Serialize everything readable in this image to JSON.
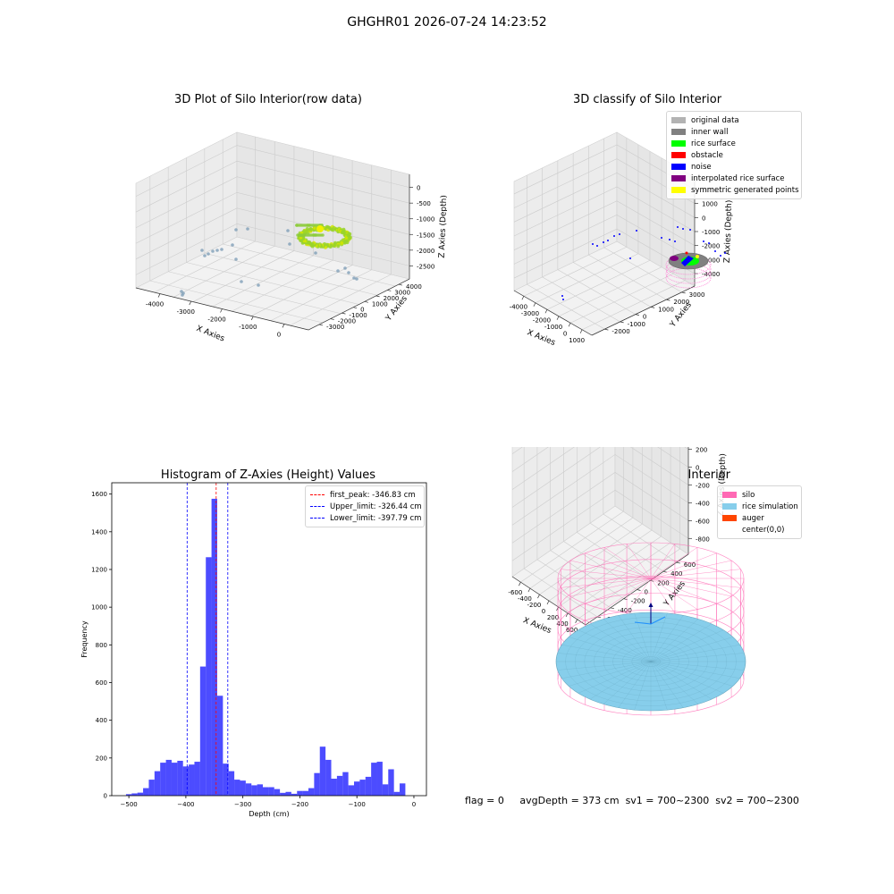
{
  "figure_title": "GHGHR01 2026-07-24 14:23:52",
  "footer": {
    "flag": "flag = 0",
    "avg_depth": "avgDepth = 373 cm",
    "sv1": "sv1 = 700~2300",
    "sv2": "sv2 = 700~2300"
  },
  "chart_data": [
    {
      "id": "raw3d",
      "type": "scatter",
      "title": "3D Plot of Silo Interior(row data)",
      "xlabel": "X Axies",
      "ylabel": "Y Axies",
      "zlabel": "Z Axies (Depth)",
      "x_ticks": [
        "-4000",
        "-3000",
        "-2000",
        "-1000",
        "0"
      ],
      "y_ticks": [
        "-3000",
        "-2000",
        "-1000",
        "0",
        "1000",
        "2000",
        "3000",
        "4000"
      ],
      "z_ticks": [
        "0",
        "-500",
        "-1000",
        "-1500",
        "-2000",
        "-2500"
      ],
      "xlim": [
        -4400,
        300
      ],
      "ylim": [
        -3300,
        4300
      ],
      "zlim": [
        -2900,
        200
      ]
    },
    {
      "id": "classify3d",
      "type": "scatter",
      "title": "3D classify of Silo Interior",
      "xlabel": "X Axies",
      "ylabel": "Y Axies",
      "zlabel": "Z Axies (Depth)",
      "x_ticks": [
        "-4000",
        "-3000",
        "-2000",
        "-1000",
        "0",
        "1000"
      ],
      "y_ticks": [
        "-2000",
        "-1000",
        "0",
        "1000",
        "2000",
        "3000"
      ],
      "z_ticks": [
        "2000",
        "1000",
        "0",
        "-1000",
        "-2000",
        "-3000",
        "-4000"
      ],
      "legend": [
        {
          "label": "original data",
          "color": "#b3b3b3"
        },
        {
          "label": "inner wall",
          "color": "#808080"
        },
        {
          "label": "rice surface",
          "color": "#00ff00"
        },
        {
          "label": "obstacle",
          "color": "#ff0000"
        },
        {
          "label": "noise",
          "color": "#0000ff"
        },
        {
          "label": "interpolated rice surface",
          "color": "#800080"
        },
        {
          "label": "symmetric generated points",
          "color": "#ffff00"
        }
      ]
    },
    {
      "id": "histogram",
      "type": "bar",
      "title": "Histogram of Z-Axies (Height) Values",
      "xlabel": "Depth (cm)",
      "ylabel": "Frequency",
      "xlim": [
        -530,
        22
      ],
      "ylim": [
        0,
        1660
      ],
      "x_ticks": [
        -500,
        -400,
        -300,
        -200,
        -100,
        0
      ],
      "y_ticks": [
        0,
        200,
        400,
        600,
        800,
        1000,
        1200,
        1400,
        1600
      ],
      "bin_start": -505,
      "bin_width": 10,
      "counts": [
        8,
        12,
        16,
        40,
        85,
        130,
        175,
        190,
        175,
        185,
        155,
        165,
        180,
        685,
        1265,
        1575,
        530,
        170,
        130,
        85,
        80,
        65,
        55,
        60,
        45,
        45,
        35,
        15,
        20,
        10,
        25,
        25,
        40,
        120,
        260,
        190,
        90,
        105,
        125,
        55,
        75,
        85,
        100,
        175,
        180,
        60,
        140,
        20,
        65
      ],
      "bar_color": "#0000ff",
      "vlines": [
        {
          "label": "first_peak: -346.83 cm",
          "x": -346.83,
          "color": "#ff0000"
        },
        {
          "label": "Upper_limit: -326.44 cm",
          "x": -326.44,
          "color": "#0000ff"
        },
        {
          "label": "Lower_limit: -397.79 cm",
          "x": -397.79,
          "color": "#0000ff"
        }
      ],
      "legend_position": "upper right"
    },
    {
      "id": "simulation3d",
      "type": "surface",
      "title": "3D simulation of Silo Interior",
      "xlabel": "X Axies",
      "ylabel": "Y Axies",
      "zlabel": "Z Axies (Depth)",
      "x_ticks": [
        "-600",
        "-400",
        "-200",
        "0",
        "200",
        "400",
        "600"
      ],
      "y_ticks": [
        "-600",
        "-400",
        "-200",
        "0",
        "200",
        "400",
        "600"
      ],
      "z_ticks": [
        "400",
        "200",
        "0",
        "-200",
        "-400",
        "-600",
        "-800"
      ],
      "legend": [
        {
          "label": "silo",
          "color": "#ff69b4"
        },
        {
          "label": "rice simulation",
          "color": "#87ceeb"
        },
        {
          "label": "auger",
          "color": "#ff4500"
        },
        {
          "label": "center(0,0)",
          "color": ""
        }
      ]
    }
  ]
}
